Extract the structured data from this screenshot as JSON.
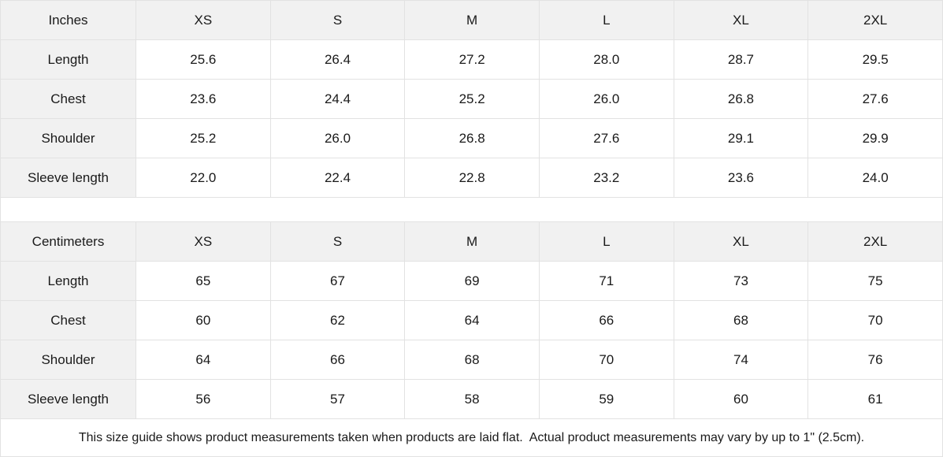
{
  "colors": {
    "header_bg": "#f1f1f1",
    "cell_bg": "#ffffff",
    "border": "#e2e2e2",
    "text": "#1a1a1a"
  },
  "tables": [
    {
      "unit_label": "Inches",
      "size_headers": [
        "XS",
        "S",
        "M",
        "L",
        "XL",
        "2XL"
      ],
      "rows": [
        {
          "label": "Length",
          "values": [
            "25.6",
            "26.4",
            "27.2",
            "28.0",
            "28.7",
            "29.5"
          ]
        },
        {
          "label": "Chest",
          "values": [
            "23.6",
            "24.4",
            "25.2",
            "26.0",
            "26.8",
            "27.6"
          ]
        },
        {
          "label": "Shoulder",
          "values": [
            "25.2",
            "26.0",
            "26.8",
            "27.6",
            "29.1",
            "29.9"
          ]
        },
        {
          "label": "Sleeve length",
          "values": [
            "22.0",
            "22.4",
            "22.8",
            "23.2",
            "23.6",
            "24.0"
          ]
        }
      ]
    },
    {
      "unit_label": "Centimeters",
      "size_headers": [
        "XS",
        "S",
        "M",
        "L",
        "XL",
        "2XL"
      ],
      "rows": [
        {
          "label": "Length",
          "values": [
            "65",
            "67",
            "69",
            "71",
            "73",
            "75"
          ]
        },
        {
          "label": "Chest",
          "values": [
            "60",
            "62",
            "64",
            "66",
            "68",
            "70"
          ]
        },
        {
          "label": "Shoulder",
          "values": [
            "64",
            "66",
            "68",
            "70",
            "74",
            "76"
          ]
        },
        {
          "label": "Sleeve length",
          "values": [
            "56",
            "57",
            "58",
            "59",
            "60",
            "61"
          ]
        }
      ]
    }
  ],
  "footer_note": "This size guide shows product measurements taken when products are laid flat.  Actual product measurements may vary by up to 1\" (2.5cm)."
}
